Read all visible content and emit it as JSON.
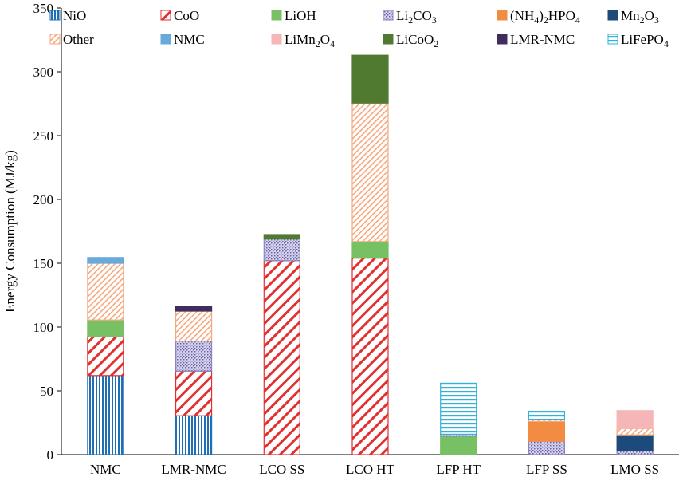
{
  "chart_data": {
    "type": "bar",
    "stacked": true,
    "ylabel": "Energy Consumption  (MJ/kg)",
    "ylim": [
      0,
      350
    ],
    "yticks": [
      0,
      50,
      100,
      150,
      200,
      250,
      300,
      350
    ],
    "grid": false,
    "legend_placement": "top",
    "categories": [
      "NMC",
      "LMR-NMC",
      "LCO SS",
      "LCO HT",
      "LFP HT",
      "LFP SS",
      "LMO SS"
    ],
    "series": [
      {
        "key": "nio",
        "name": "NiO",
        "pattern": "vertical",
        "color": "#1f6fb5",
        "values": [
          62,
          30.5,
          0,
          0,
          0,
          0,
          0
        ]
      },
      {
        "key": "coo",
        "name": "CoO",
        "pattern": "diagonal",
        "color": "#e03030",
        "values": [
          30.5,
          35,
          152,
          154,
          0,
          0,
          0
        ]
      },
      {
        "key": "lioh",
        "name": "LiOH",
        "pattern": "solid",
        "color": "#77c063",
        "values": [
          13,
          0,
          0,
          13,
          14.5,
          0,
          0
        ]
      },
      {
        "key": "li2co3",
        "name": "Li",
        "sub": "2",
        "tail": "CO",
        "sub2": "3",
        "pattern": "dots",
        "color": "#8a84c0",
        "values": [
          0,
          23.5,
          17,
          0,
          1.5,
          10.5,
          3
        ]
      },
      {
        "key": "nh4",
        "name": "(NH",
        "sub": "4",
        "tail": ")",
        "sub2": "2",
        "tail2": "HPO",
        "sub3": "4",
        "pattern": "solid",
        "color": "#f28c43",
        "values": [
          0,
          0,
          0,
          0,
          0,
          15.5,
          0
        ]
      },
      {
        "key": "mn2o3",
        "name": "Mn",
        "sub": "2",
        "tail": "O",
        "sub2": "3",
        "pattern": "solid",
        "color": "#1c4a7a",
        "values": [
          0,
          0,
          0,
          0,
          0,
          0,
          12.5
        ]
      },
      {
        "key": "other",
        "name": "Other",
        "pattern": "diagonal2",
        "color": "#f4a97e",
        "values": [
          44.5,
          23.5,
          0,
          108.5,
          0,
          1.5,
          5
        ]
      },
      {
        "key": "nmc",
        "name": "NMC",
        "pattern": "solid",
        "color": "#6aaadb",
        "values": [
          4.5,
          0,
          0,
          0,
          0,
          0,
          0
        ]
      },
      {
        "key": "limn",
        "name": "LiMn",
        "sub": "2",
        "tail": "O",
        "sub2": "4",
        "pattern": "solid",
        "color": "#f4b6b6",
        "values": [
          0,
          0,
          0,
          0,
          0,
          0,
          14
        ]
      },
      {
        "key": "licoo2",
        "name": "LiCoO",
        "sub": "2",
        "pattern": "solid",
        "color": "#4f7a30",
        "values": [
          0,
          0,
          3.5,
          37.5,
          0,
          0,
          0
        ]
      },
      {
        "key": "lmr",
        "name": "LMR-NMC",
        "pattern": "solid",
        "color": "#3e2e5e",
        "values": [
          0,
          4,
          0,
          0,
          0,
          0,
          0
        ]
      },
      {
        "key": "lfp",
        "name": "LiFePO",
        "sub": "4",
        "pattern": "horizontal",
        "color": "#2fb3d9",
        "values": [
          0,
          0,
          0,
          0,
          40,
          6.5,
          0
        ]
      }
    ]
  }
}
